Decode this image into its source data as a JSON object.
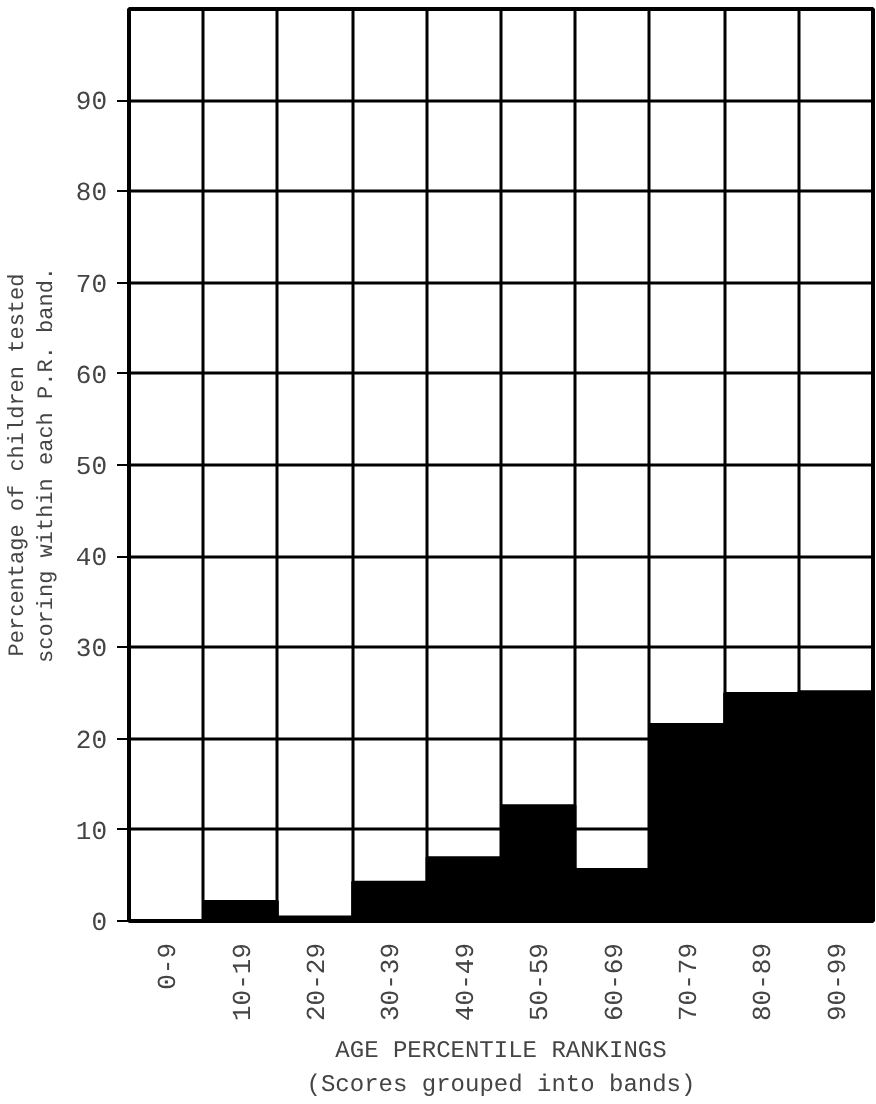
{
  "chart_data": {
    "type": "bar",
    "categories": [
      "0-9",
      "10-19",
      "20-29",
      "30-39",
      "40-49",
      "50-59",
      "60-69",
      "70-79",
      "80-89",
      "90-99"
    ],
    "values": [
      0,
      2.2,
      0.5,
      4.3,
      7,
      12.7,
      5.7,
      21.6,
      25,
      25.2
    ],
    "color": "#000000",
    "xlabel": "AGE PERCENTILE RANKINGS\n(Scores grouped into bands)",
    "ylabel": "Percentage of children tested\nscoring within each P.R. band.",
    "ylim": [
      0,
      100
    ],
    "yticks": [
      0,
      10,
      20,
      30,
      40,
      50,
      60,
      70,
      80,
      90
    ],
    "grid": true
  }
}
